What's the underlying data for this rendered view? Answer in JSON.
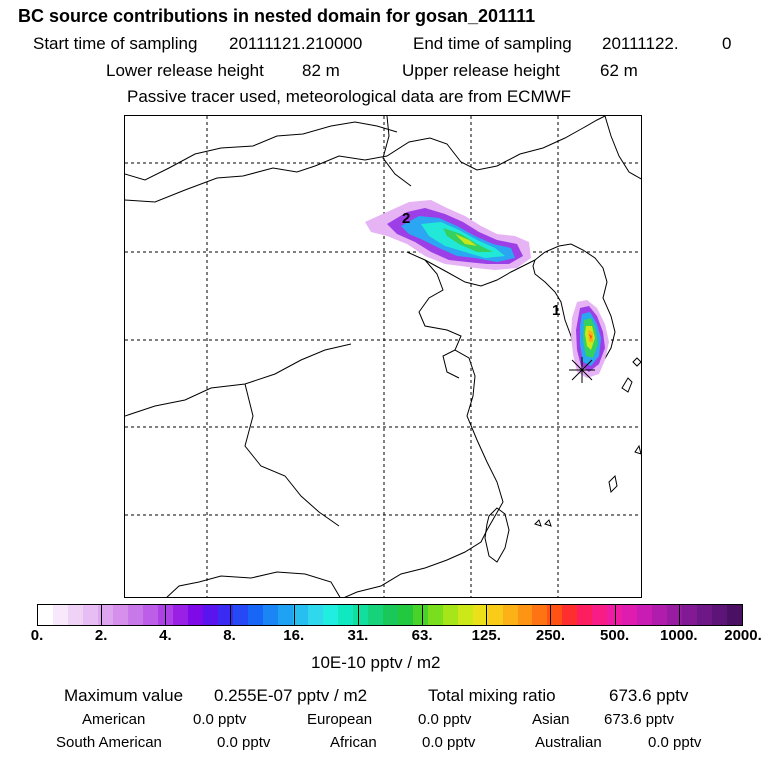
{
  "header": {
    "title": "BC  source contributions in nested domain for gosan_201111",
    "start_label": "Start time of sampling",
    "start_value": "20111121.210000",
    "end_label": "End time of sampling",
    "end_value": "20111122.",
    "end_value_suffix": "0",
    "lower_label": "Lower release height",
    "lower_value": "82 m",
    "upper_label": "Upper release height",
    "upper_value": "62 m",
    "tracer_note": "Passive tracer used, meteorological data are from ECMWF"
  },
  "map": {
    "markers": [
      "1",
      "2"
    ]
  },
  "legend": {
    "colors": [
      "#ffffff",
      "#f7e9fb",
      "#efd3f7",
      "#e8bdf4",
      "#dfa6f0",
      "#d690ec",
      "#c978ea",
      "#bd5ee8",
      "#ad40e6",
      "#9a20e6",
      "#7e0ae8",
      "#5a14ee",
      "#3a2af2",
      "#2449f5",
      "#1866f6",
      "#1a85f5",
      "#1fa2f3",
      "#26bff0",
      "#2fd8ec",
      "#20eee0",
      "#10e8c0",
      "#12de9e",
      "#16d27a",
      "#1ac85a",
      "#22c83e",
      "#48d22a",
      "#78de1e",
      "#a6e618",
      "#cce818",
      "#ece01a",
      "#f8cc18",
      "#fcb216",
      "#fe9414",
      "#ff7412",
      "#ff5214",
      "#ff2e2e",
      "#fd1e60",
      "#f81c86",
      "#ee1ca2",
      "#de1cb0",
      "#c81cb4",
      "#b01cac",
      "#981ca2",
      "#821a96",
      "#6e1888",
      "#5c1478",
      "#4a1064"
    ],
    "ticks": [
      "0.",
      "2.",
      "4.",
      "8.",
      "16.",
      "31.",
      "63.",
      "125.",
      "250.",
      "500.",
      "1000.",
      "2000."
    ],
    "unit": "10E-10 pptv / m2"
  },
  "stats": {
    "max_label": "Maximum value",
    "max_value": "0.255E-07 pptv / m2",
    "total_label": "Total mixing ratio",
    "total_value": "673.6 pptv",
    "regions": [
      {
        "name": "American",
        "value": "0.0 pptv"
      },
      {
        "name": "European",
        "value": "0.0 pptv"
      },
      {
        "name": "Asian",
        "value": "673.6 pptv"
      },
      {
        "name": "South American",
        "value": "0.0 pptv"
      },
      {
        "name": "African",
        "value": "0.0 pptv"
      },
      {
        "name": "Australian",
        "value": "0.0 pptv"
      }
    ]
  }
}
